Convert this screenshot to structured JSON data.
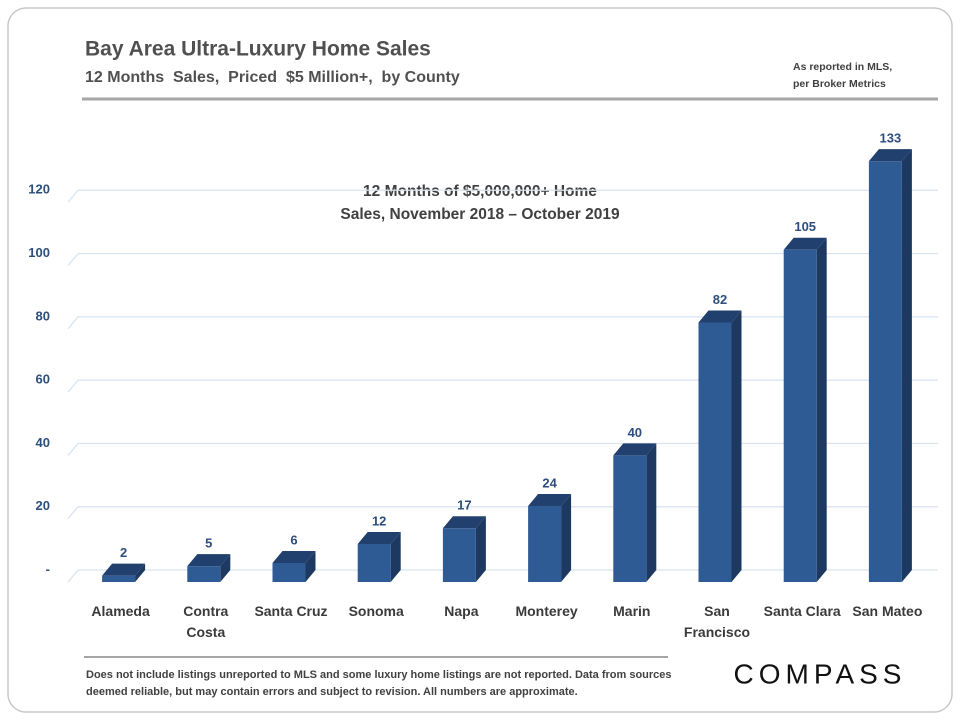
{
  "chart_data": {
    "type": "bar",
    "title": "Bay Area Ultra-Luxury Home Sales",
    "subtitle": "12 Months  Sales,  Priced  $5 Million+,  by County",
    "note": [
      "As reported in MLS,",
      "per Broker Metrics"
    ],
    "annotation": [
      "12 Months of $5,000,000+ Home",
      "Sales, November 2018 – October 2019"
    ],
    "footnote": "Does not include listings unreported to MLS and some luxury home listings are not reported. Data from sources deemed reliable, but may contain errors and subject to revision. All numbers are approximate.",
    "logo": "COMPASS",
    "categories": [
      "Alameda",
      "Contra Costa",
      "Santa Cruz",
      "Sonoma",
      "Napa",
      "Monterey",
      "Marin",
      "San Francisco",
      "Santa Clara",
      "San Mateo"
    ],
    "values": [
      2,
      5,
      6,
      12,
      17,
      24,
      40,
      82,
      105,
      133
    ],
    "color": "#2f5b94",
    "ylim": [
      0,
      140
    ],
    "yticks": [
      {
        "value": 0,
        "label": "-"
      },
      20,
      40,
      60,
      80,
      100,
      120
    ],
    "grid": true
  }
}
